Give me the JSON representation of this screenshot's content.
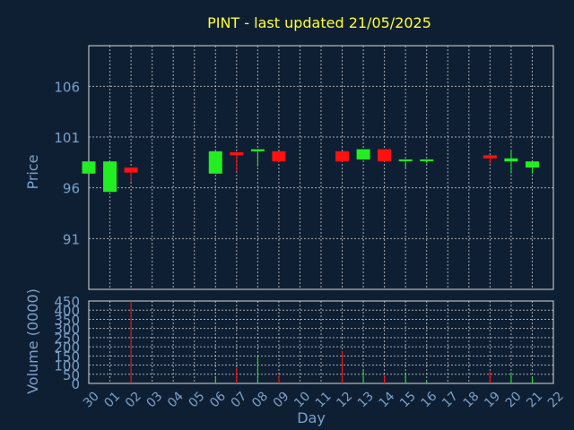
{
  "chart_data": [
    {
      "type": "candlestick",
      "title": "PINT - last updated 21/05/2025",
      "ylabel": "Price",
      "xlabel": "",
      "ylim": [
        86,
        110
      ],
      "yticks": [
        91,
        96,
        101,
        106
      ],
      "grid": true,
      "colors": {
        "up": "#22ee22",
        "down": "#ff1111"
      },
      "candles": [
        {
          "day": "30",
          "open": 97.4,
          "high": 98.6,
          "low": 97.4,
          "close": 98.6
        },
        {
          "day": "01",
          "open": 95.6,
          "high": 98.6,
          "low": 95.6,
          "close": 98.6
        },
        {
          "day": "02",
          "open": 98.0,
          "high": 98.0,
          "low": 96.6,
          "close": 97.5
        },
        {
          "day": "06",
          "open": 97.4,
          "high": 99.6,
          "low": 97.4,
          "close": 99.6
        },
        {
          "day": "07",
          "open": 99.5,
          "high": 99.5,
          "low": 97.6,
          "close": 99.2
        },
        {
          "day": "08",
          "open": 99.6,
          "high": 99.8,
          "low": 98.1,
          "close": 99.8
        },
        {
          "day": "09",
          "open": 99.6,
          "high": 99.6,
          "low": 98.5,
          "close": 98.6
        },
        {
          "day": "12",
          "open": 99.6,
          "high": 99.6,
          "low": 98.6,
          "close": 98.6
        },
        {
          "day": "13",
          "open": 98.8,
          "high": 99.8,
          "low": 98.8,
          "close": 99.8
        },
        {
          "day": "14",
          "open": 99.8,
          "high": 99.8,
          "low": 98.6,
          "close": 98.6
        },
        {
          "day": "15",
          "open": 98.8,
          "high": 98.8,
          "low": 98.0,
          "close": 98.8
        },
        {
          "day": "16",
          "open": 98.8,
          "high": 98.8,
          "low": 98.4,
          "close": 98.8
        },
        {
          "day": "19",
          "open": 99.2,
          "high": 99.2,
          "low": 98.4,
          "close": 98.9
        },
        {
          "day": "20",
          "open": 98.6,
          "high": 99.6,
          "low": 97.4,
          "close": 98.9
        },
        {
          "day": "21",
          "open": 98.0,
          "high": 98.6,
          "low": 97.4,
          "close": 98.6
        }
      ]
    },
    {
      "type": "bar",
      "ylabel": "Volume (0000)",
      "xlabel": "Day",
      "ylim": [
        0,
        450
      ],
      "yticks": [
        0,
        50,
        100,
        150,
        200,
        250,
        300,
        350,
        400,
        450
      ],
      "grid": true,
      "categories": [
        "30",
        "01",
        "02",
        "03",
        "04",
        "05",
        "06",
        "07",
        "08",
        "09",
        "10",
        "11",
        "12",
        "13",
        "14",
        "15",
        "16",
        "17",
        "18",
        "19",
        "20",
        "21",
        "22"
      ],
      "values": [
        {
          "day": "02",
          "value": 450,
          "direction": "down"
        },
        {
          "day": "06",
          "value": 40,
          "direction": "up"
        },
        {
          "day": "07",
          "value": 85,
          "direction": "down"
        },
        {
          "day": "08",
          "value": 150,
          "direction": "up"
        },
        {
          "day": "09",
          "value": 45,
          "direction": "down"
        },
        {
          "day": "12",
          "value": 175,
          "direction": "down"
        },
        {
          "day": "13",
          "value": 70,
          "direction": "up"
        },
        {
          "day": "14",
          "value": 45,
          "direction": "down"
        },
        {
          "day": "15",
          "value": 60,
          "direction": "up"
        },
        {
          "day": "16",
          "value": 10,
          "direction": "up"
        },
        {
          "day": "19",
          "value": 65,
          "direction": "down"
        },
        {
          "day": "20",
          "value": 60,
          "direction": "up"
        },
        {
          "day": "21",
          "value": 35,
          "direction": "up"
        }
      ]
    }
  ]
}
